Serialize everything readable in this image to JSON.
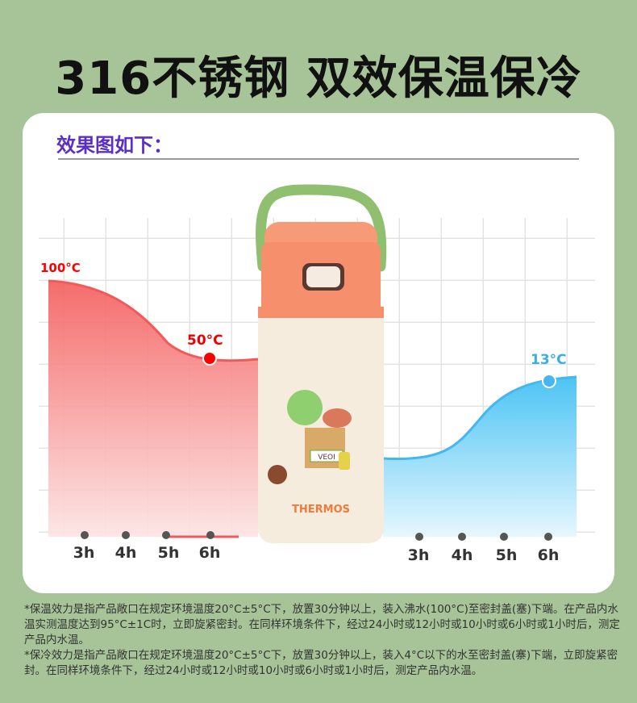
{
  "title": "316不锈钢 双效保温保冷",
  "subtitle": "效果图如下：",
  "hot_chart": {
    "start_label": "100°C",
    "end_label": "50°C",
    "ticks": [
      "3h",
      "4h",
      "5h",
      "6h"
    ],
    "color": "#f25a5a"
  },
  "cold_chart": {
    "end_label": "13°C",
    "ticks": [
      "3h",
      "4h",
      "5h",
      "6h"
    ],
    "color": "#45b6f0"
  },
  "bottle": {
    "brand": "THERMOS",
    "badge": "VEOI"
  },
  "notes": [
    "*保温效力是指产品敞口在规定环境温度20°C±5°C下，放置30分钟以上，装入沸水(100°C)至密封盖(塞)下端。在产品内水温实测温度达到95°C±1C时，立即旋紧密封。在同样环境条件下，经过24小时或12小时或10小时或6小时或1小时后，测定产品内水温。",
    "*保冷效力是指产品敞口在规定环境温度20°C±5°C下，放置30分钟以上，装入4°C以下的水至密封盖(寨)下端，立即旋紧密封。在同样环境条件下，经过24小时或12小时或10小时或6小时或1小时后，测定产品内水温。"
  ]
}
